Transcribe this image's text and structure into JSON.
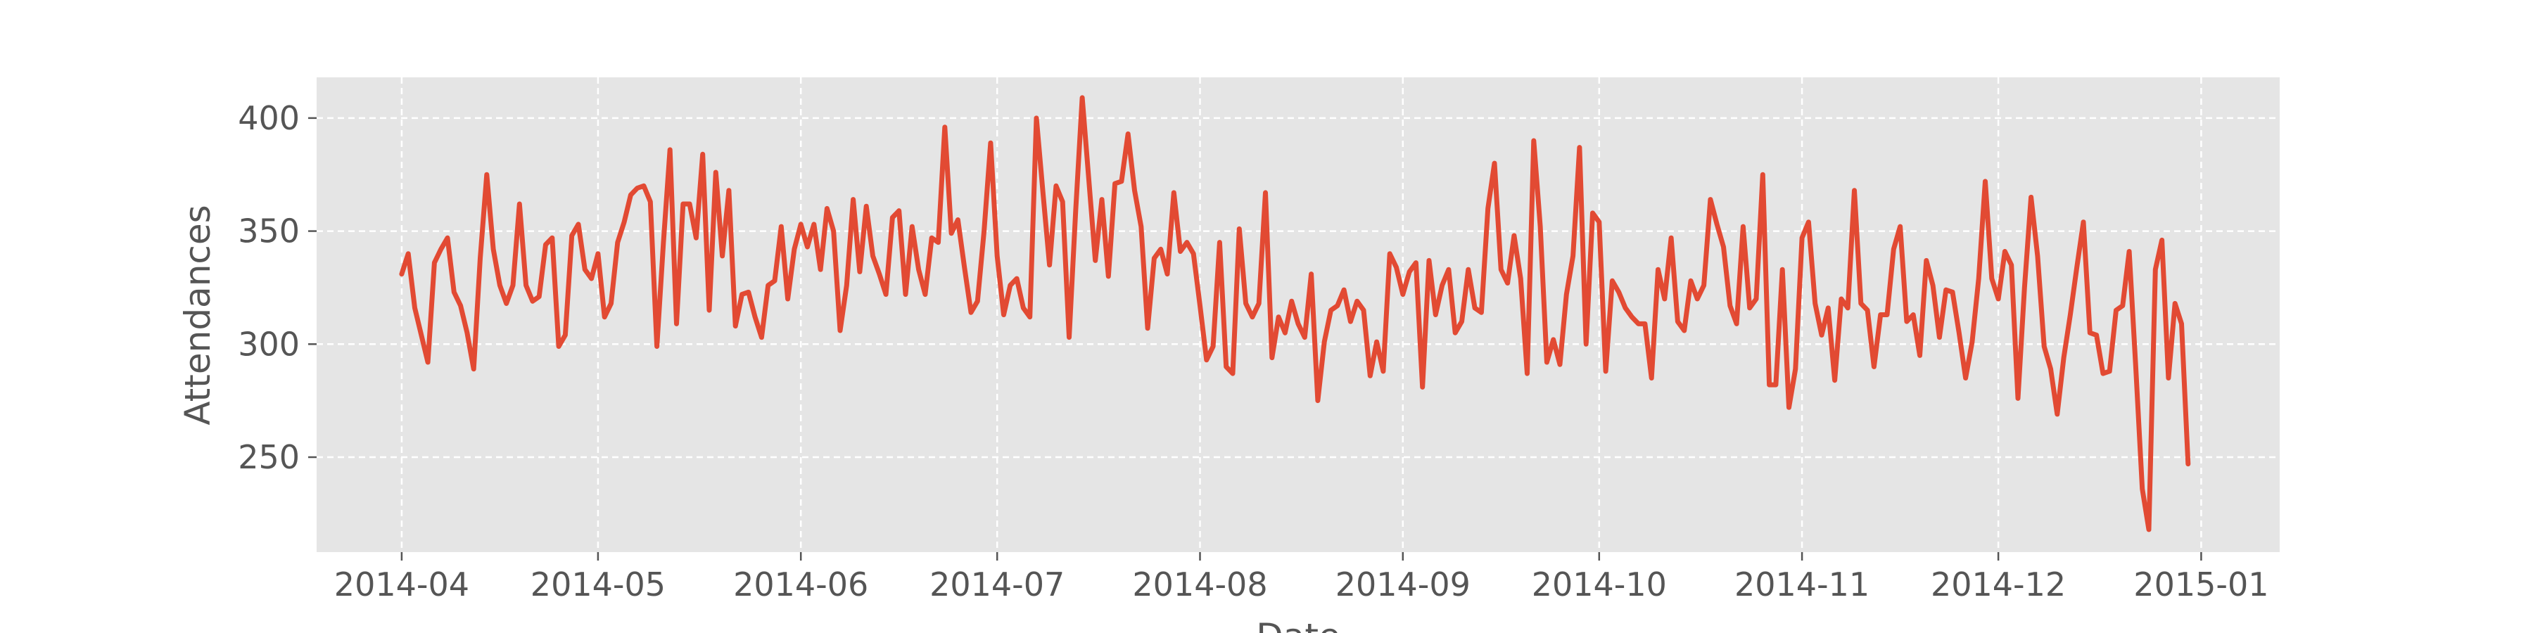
{
  "chart_data": {
    "type": "line",
    "xlabel": "Date",
    "ylabel": "Attendances",
    "x_start": "2014-04-01",
    "x_end": "2014-12-31",
    "xlim": [
      "2014-03-19",
      "2015-01-13"
    ],
    "ylim": [
      208,
      418
    ],
    "x_ticks": [
      {
        "date": "2014-04-01",
        "label": "2014-04"
      },
      {
        "date": "2014-05-01",
        "label": "2014-05"
      },
      {
        "date": "2014-06-01",
        "label": "2014-06"
      },
      {
        "date": "2014-07-01",
        "label": "2014-07"
      },
      {
        "date": "2014-08-01",
        "label": "2014-08"
      },
      {
        "date": "2014-09-01",
        "label": "2014-09"
      },
      {
        "date": "2014-10-01",
        "label": "2014-10"
      },
      {
        "date": "2014-11-01",
        "label": "2014-11"
      },
      {
        "date": "2014-12-01",
        "label": "2014-12"
      },
      {
        "date": "2015-01-01",
        "label": "2015-01"
      }
    ],
    "y_ticks": [
      {
        "value": 250,
        "label": "250"
      },
      {
        "value": 300,
        "label": "300"
      },
      {
        "value": 350,
        "label": "350"
      },
      {
        "value": 400,
        "label": "400"
      }
    ],
    "grid": true,
    "style": "ggplot",
    "series_color": "#e24a33",
    "series": [
      {
        "values": [
          331,
          340,
          316,
          304,
          292,
          336,
          342,
          347,
          323,
          317,
          305,
          289,
          338,
          375,
          342,
          326,
          318,
          326,
          362,
          326,
          319,
          321,
          344,
          347,
          299,
          304,
          348,
          353,
          333,
          329,
          340,
          312,
          318,
          345,
          354,
          366,
          369,
          370,
          363,
          299,
          345,
          386,
          309,
          362,
          362,
          347,
          384,
          315,
          376,
          339,
          368,
          308,
          322,
          323,
          312,
          303,
          326,
          328,
          352,
          320,
          342,
          353,
          343,
          353,
          333,
          360,
          350,
          306,
          326,
          364,
          332,
          361,
          339,
          331,
          322,
          356,
          359,
          322,
          352,
          333,
          322,
          347,
          345,
          396,
          349,
          355,
          334,
          314,
          319,
          350,
          389,
          339,
          313,
          326,
          329,
          316,
          312,
          400,
          367,
          335,
          370,
          363,
          303,
          359,
          409,
          373,
          337,
          364,
          330,
          371,
          372,
          393,
          368,
          352,
          307,
          338,
          342,
          331,
          367,
          341,
          345,
          340,
          317,
          293,
          299,
          345,
          290,
          287,
          351,
          318,
          312,
          318,
          367,
          294,
          312,
          305,
          319,
          309,
          303,
          331,
          275,
          301,
          315,
          317,
          324,
          310,
          319,
          315,
          286,
          301,
          288,
          340,
          334,
          322,
          332,
          336,
          281,
          337,
          313,
          326,
          333,
          305,
          310,
          333,
          316,
          314,
          360,
          380,
          333,
          327,
          348,
          329,
          287,
          390,
          352,
          292,
          302,
          291,
          322,
          339,
          387,
          300,
          358,
          354,
          288,
          328,
          323,
          316,
          312,
          309,
          309,
          285,
          333,
          320,
          347,
          310,
          306,
          328,
          320,
          326,
          364,
          353,
          343,
          317,
          309,
          352,
          316,
          320,
          375,
          282,
          282,
          333,
          272,
          289,
          347,
          354,
          318,
          304,
          316,
          284,
          320,
          316,
          368,
          318,
          315,
          290,
          313,
          313,
          342,
          352,
          310,
          313,
          295,
          337,
          326,
          303,
          324,
          323,
          305,
          285,
          301,
          329,
          372,
          329,
          320,
          341,
          335,
          276,
          325,
          365,
          339,
          299,
          289,
          269,
          294,
          313,
          334,
          354,
          305,
          304,
          287,
          288,
          315,
          317,
          341,
          290,
          236,
          218,
          333,
          346,
          285,
          318,
          309,
          247
        ]
      }
    ]
  }
}
